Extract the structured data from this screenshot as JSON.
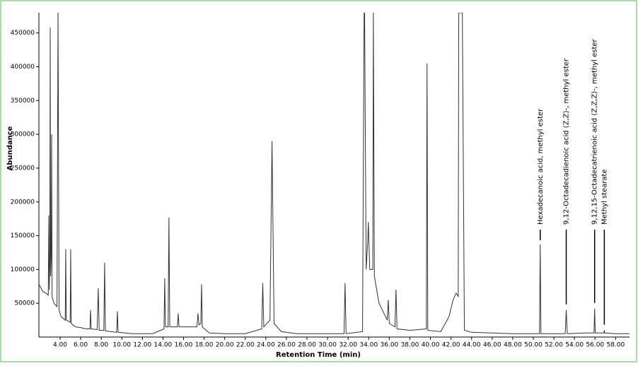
{
  "chart_data": {
    "type": "line",
    "xlabel": "Retention Time (min)",
    "ylabel": "Abundance",
    "color": "#333333",
    "xlim": [
      1.94,
      59.35
    ],
    "ylim": [
      0,
      480000
    ],
    "xticks": [
      {
        "value": 4,
        "label": "4.00"
      },
      {
        "value": 6,
        "label": "6.00"
      },
      {
        "value": 8,
        "label": "8.00"
      },
      {
        "value": 10,
        "label": "10.00"
      },
      {
        "value": 12,
        "label": "12.00"
      },
      {
        "value": 14,
        "label": "14.00"
      },
      {
        "value": 16,
        "label": "16.00"
      },
      {
        "value": 18,
        "label": "18.00"
      },
      {
        "value": 20,
        "label": "20.00"
      },
      {
        "value": 22,
        "label": "22.00"
      },
      {
        "value": 24,
        "label": "24.00"
      },
      {
        "value": 26,
        "label": "26.00"
      },
      {
        "value": 28,
        "label": "28.00"
      },
      {
        "value": 30,
        "label": "30.00"
      },
      {
        "value": 32,
        "label": "32.00"
      },
      {
        "value": 34,
        "label": "34.00"
      },
      {
        "value": 36,
        "label": "36.00"
      },
      {
        "value": 38,
        "label": "38.00"
      },
      {
        "value": 40,
        "label": "40.00"
      },
      {
        "value": 42,
        "label": "42.00"
      },
      {
        "value": 44,
        "label": "44.00"
      },
      {
        "value": 46,
        "label": "46.00"
      },
      {
        "value": 48,
        "label": "48.00"
      },
      {
        "value": 50,
        "label": "50.00"
      },
      {
        "value": 52,
        "label": "52.00"
      },
      {
        "value": 54,
        "label": "54.00"
      },
      {
        "value": 56,
        "label": "56.00"
      },
      {
        "value": 58,
        "label": "58.00"
      }
    ],
    "yticks": [
      50000,
      100000,
      150000,
      200000,
      250000,
      300000,
      350000,
      400000,
      450000
    ],
    "x": [
      1.94,
      2.3,
      2.6,
      2.85,
      2.9,
      2.95,
      3.0,
      3.04,
      3.08,
      3.14,
      3.18,
      3.22,
      3.4,
      3.7,
      3.8,
      3.9,
      4.1,
      4.5,
      4.55,
      4.6,
      4.98,
      5.03,
      5.08,
      5.5,
      6.0,
      6.5,
      6.9,
      6.96,
      7.02,
      7.6,
      7.71,
      7.8,
      8.25,
      8.33,
      8.4,
      9.0,
      9.5,
      9.57,
      9.64,
      11.0,
      13.0,
      14.1,
      14.17,
      14.24,
      14.5,
      14.58,
      14.66,
      15.4,
      15.48,
      15.56,
      17.3,
      17.4,
      17.5,
      17.68,
      17.75,
      17.82,
      18.5,
      20.0,
      22.0,
      23.6,
      23.7,
      23.8,
      24.4,
      24.6,
      24.8,
      25.5,
      27.0,
      29.0,
      31.6,
      31.7,
      31.8,
      33.4,
      33.55,
      33.6,
      33.75,
      33.9,
      33.96,
      34.1,
      34.4,
      34.45,
      34.55,
      35.0,
      35.8,
      35.9,
      36.0,
      36.55,
      36.65,
      36.75,
      38.0,
      39.6,
      39.67,
      39.74,
      41.0,
      41.8,
      42.2,
      42.5,
      42.7,
      42.75,
      42.9,
      43.05,
      43.1,
      43.3,
      44.0,
      46.0,
      48.0,
      50.6,
      50.67,
      50.74,
      52.0,
      53.1,
      53.2,
      53.3,
      55.0,
      55.9,
      55.96,
      56.02,
      56.85,
      56.9,
      56.95,
      58.0,
      59.35
    ],
    "values": [
      78000,
      68000,
      65000,
      62000,
      180000,
      70000,
      110000,
      458000,
      90000,
      120000,
      300000,
      60000,
      50000,
      45000,
      480000,
      40000,
      30000,
      25000,
      130000,
      25000,
      22000,
      130000,
      20000,
      15000,
      14000,
      12000,
      12000,
      40000,
      12000,
      11000,
      72000,
      10000,
      10000,
      110000,
      9000,
      8000,
      7000,
      38000,
      7000,
      5000,
      5000,
      12000,
      87000,
      15000,
      15000,
      177000,
      15000,
      15000,
      35000,
      15000,
      15000,
      35000,
      18000,
      20000,
      78000,
      15000,
      6000,
      5000,
      5000,
      12000,
      80000,
      15000,
      25000,
      290000,
      20000,
      8000,
      5000,
      5000,
      5000,
      80000,
      5000,
      8000,
      480000,
      480000,
      100000,
      140000,
      170000,
      100000,
      100000,
      480000,
      90000,
      50000,
      25000,
      55000,
      20000,
      15000,
      70000,
      12000,
      10000,
      12000,
      405000,
      10000,
      8000,
      30000,
      55000,
      65000,
      60000,
      480000,
      480000,
      480000,
      480000,
      10000,
      7000,
      6000,
      5000,
      5000,
      137000,
      5000,
      5000,
      5000,
      40000,
      5000,
      6000,
      6000,
      42000,
      6000,
      6000,
      10000,
      6000,
      5000,
      5000
    ],
    "annotations": [
      {
        "text": "Hexadecanoic acid, methyl ester",
        "x": 50.67
      },
      {
        "text": "9,12-Octadecadienoic acid (Z,Z)-, methyl ester",
        "x": 53.2
      },
      {
        "text": "9,12,15-Octadecatrienoic acid (Z,Z,Z)-, methyl ester",
        "x": 55.96
      },
      {
        "text": "Methyl stearate",
        "x": 56.9
      }
    ]
  }
}
